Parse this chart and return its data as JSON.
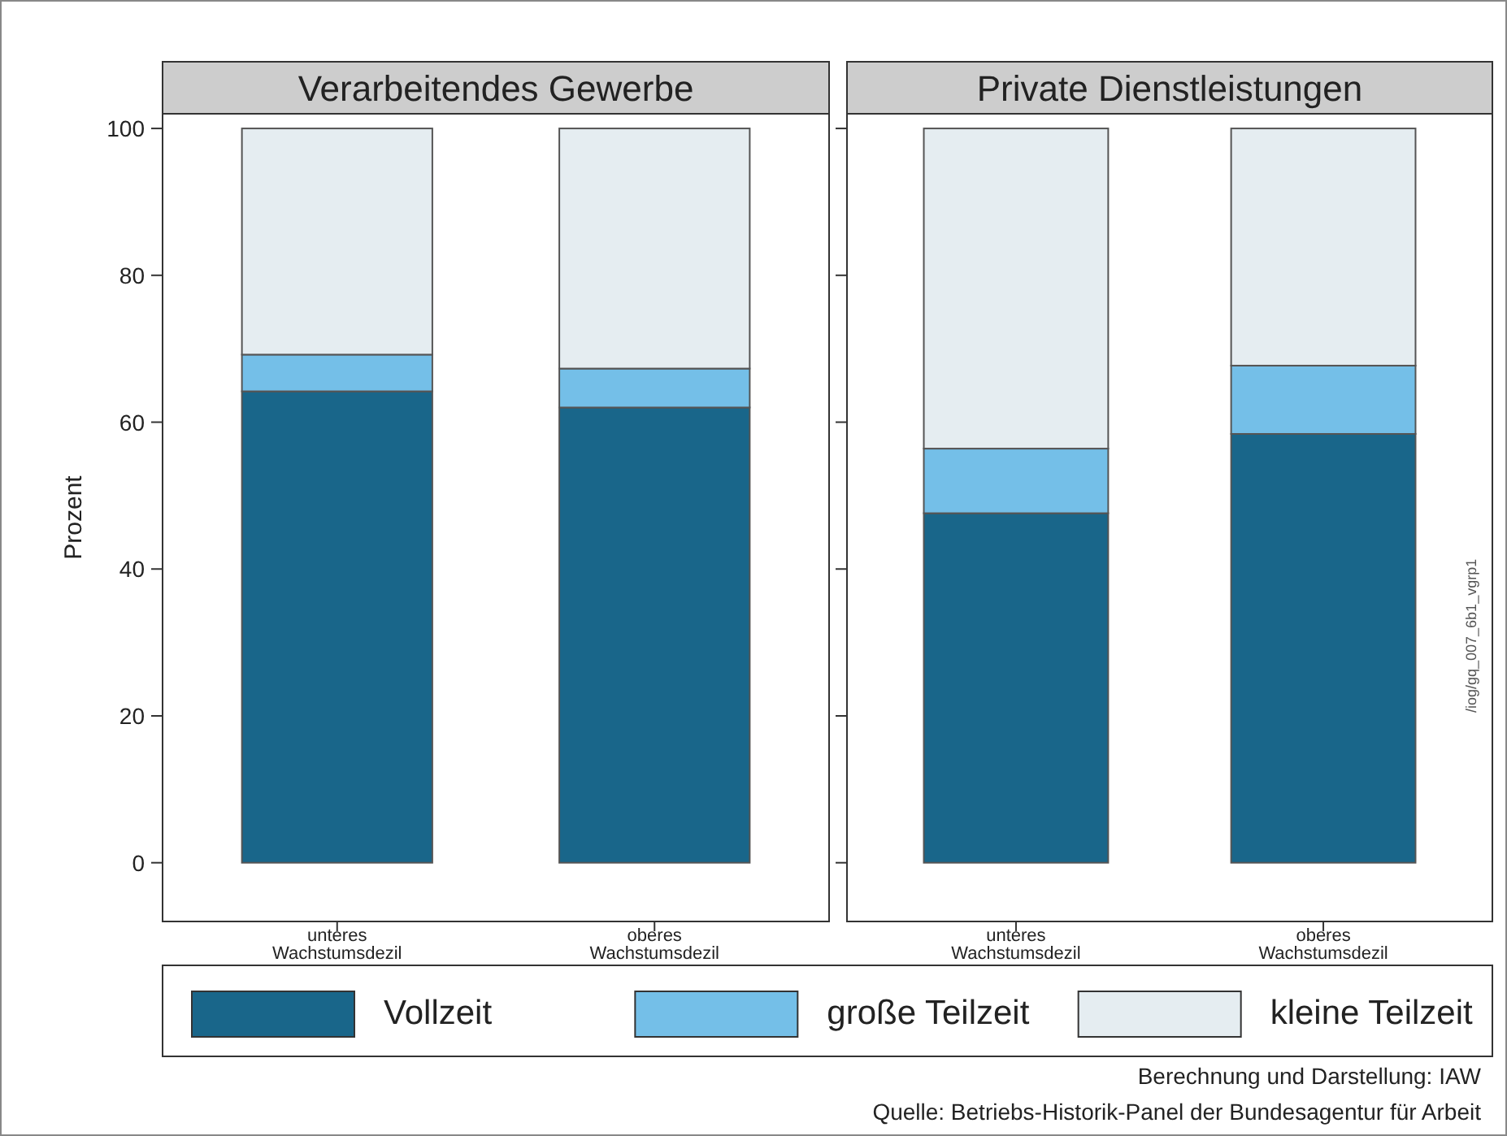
{
  "chart_data": [
    {
      "type": "bar",
      "title": "Verarbeitendes Gewerbe",
      "ylabel": "Prozent",
      "categories": [
        "unteres Wachstumsdezil",
        "oberes Wachstumsdezil"
      ],
      "stacked": true,
      "ylim": [
        -8,
        102
      ],
      "yticks": [
        0,
        20,
        40,
        60,
        80,
        100
      ],
      "legend": "bottom",
      "series": [
        {
          "name": "Vollzeit",
          "color": "#19668a",
          "values": [
            64.2,
            62.0
          ]
        },
        {
          "name": "große Teilzeit",
          "color": "#74bfe8",
          "values": [
            5.0,
            5.3
          ]
        },
        {
          "name": "kleine Teilzeit",
          "color": "#e5edf1",
          "values": [
            30.8,
            32.7
          ]
        }
      ]
    },
    {
      "type": "bar",
      "title": "Private Dienstleistungen",
      "categories": [
        "unteres Wachstumsdezil",
        "oberes Wachstumsdezil"
      ],
      "stacked": true,
      "ylim": [
        -8,
        102
      ],
      "yticks": [
        0,
        20,
        40,
        60,
        80,
        100
      ],
      "tick_labels": "x",
      "annotations": [
        "/iog/gq_007_6b1_vgrp1",
        "Berechnung und Darstellung: IAW",
        "Quelle: Betriebs-Historik-Panel der Bundesagentur für Arbeit"
      ],
      "series": [
        {
          "color": "#19668a",
          "values": [
            47.6,
            58.4
          ]
        },
        {
          "color": "#74bfe8",
          "values": [
            8.8,
            9.3
          ]
        },
        {
          "color": "#e5edf1",
          "values": [
            43.6,
            32.3
          ]
        }
      ]
    }
  ]
}
